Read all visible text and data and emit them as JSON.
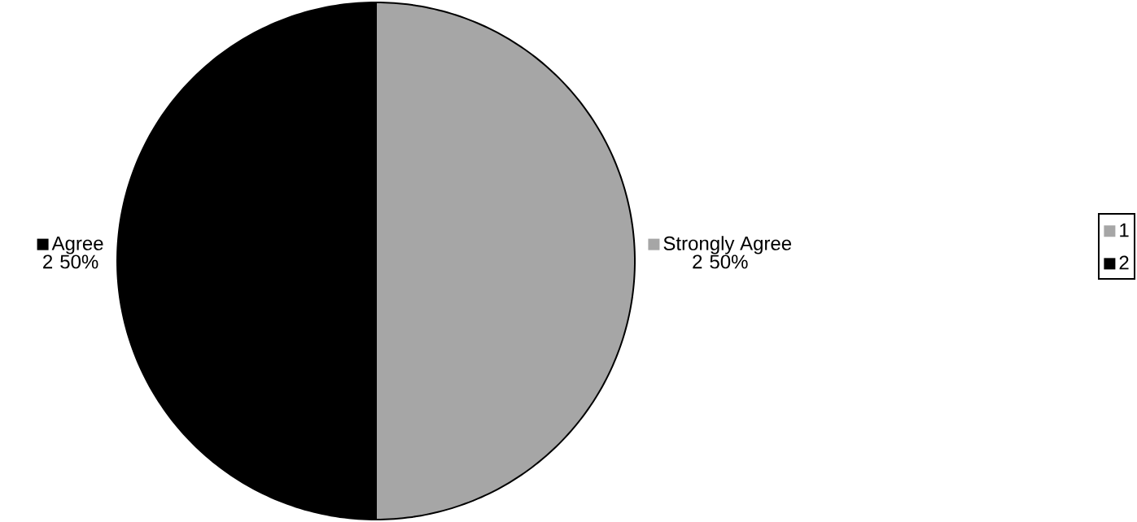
{
  "chart_data": {
    "type": "pie",
    "categories": [
      "Strongly Agree",
      "Agree"
    ],
    "values": [
      50,
      50
    ],
    "colors": [
      "#a6a6a6",
      "#000000"
    ],
    "value_labels": [
      "2 50%",
      "2 50%"
    ],
    "legend": "right",
    "annotations": [
      "1",
      "2"
    ]
  }
}
